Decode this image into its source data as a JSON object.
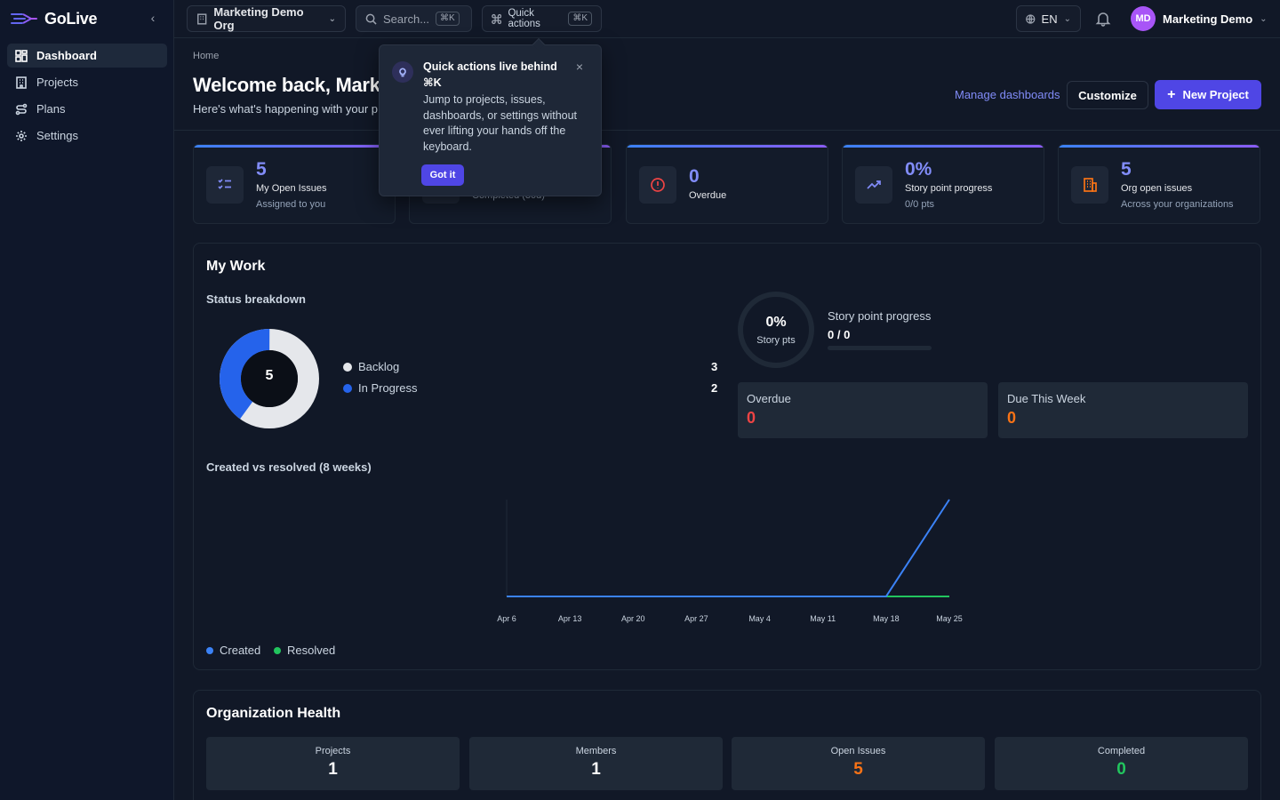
{
  "app": {
    "name": "GoLive"
  },
  "sidebar": {
    "items": [
      {
        "label": "Dashboard",
        "icon": "grid-icon",
        "active": true
      },
      {
        "label": "Projects",
        "icon": "building-icon"
      },
      {
        "label": "Plans",
        "icon": "route-icon"
      },
      {
        "label": "Settings",
        "icon": "gear-icon"
      }
    ]
  },
  "topbar": {
    "org": "Marketing Demo Org",
    "search_label": "Search...",
    "search_kbd": "⌘K",
    "quick_actions": "Quick actions",
    "quick_kbd": "⌘K",
    "lang": "EN",
    "user_initials": "MD",
    "user_name": "Marketing Demo"
  },
  "header": {
    "breadcrumb": "Home",
    "welcome": "Welcome back, Mark",
    "subtitle": "Here's what's happening with your p",
    "manage_link": "Manage dashboards",
    "customize": "Customize",
    "new_project": "New Project"
  },
  "popover": {
    "title": "Quick actions live behind ⌘K",
    "body": "Jump to projects, issues, dashboards, or settings without ever lifting your hands off the keyboard.",
    "button": "Got it"
  },
  "stats": [
    {
      "value": "5",
      "label": "My Open Issues",
      "sub": "Assigned to you"
    },
    {
      "value": "",
      "label": "Completed (30d)",
      "sub": ""
    },
    {
      "value": "0",
      "label": "Overdue",
      "sub": ""
    },
    {
      "value": "0%",
      "label": "Story point progress",
      "sub": "0/0 pts"
    },
    {
      "value": "5",
      "label": "Org open issues",
      "sub": "Across your organizations"
    }
  ],
  "my_work": {
    "title": "My Work",
    "status_breakdown": "Status breakdown",
    "donut_total": "5",
    "status": [
      {
        "label": "Backlog",
        "count": "3",
        "color": "#e5e7eb"
      },
      {
        "label": "In Progress",
        "count": "2",
        "color": "#2563eb"
      }
    ],
    "sp_percent": "0%",
    "sp_caption": "Story pts",
    "sp_title": "Story point progress",
    "sp_value": "0 / 0",
    "overdue_label": "Overdue",
    "overdue_value": "0",
    "due_label": "Due This Week",
    "due_value": "0",
    "chart_title": "Created vs resolved (8 weeks)"
  },
  "chart_data": {
    "type": "line",
    "title": "Created vs resolved (8 weeks)",
    "x": [
      "Apr 6",
      "Apr 13",
      "Apr 20",
      "Apr 27",
      "May 4",
      "May 11",
      "May 18",
      "May 25"
    ],
    "series": [
      {
        "name": "Created",
        "values": [
          0,
          0,
          0,
          0,
          0,
          0,
          0,
          5
        ],
        "color": "#3b82f6"
      },
      {
        "name": "Resolved",
        "values": [
          0,
          0,
          0,
          0,
          0,
          0,
          0,
          0
        ],
        "color": "#22c55e"
      }
    ],
    "ylim": [
      0,
      5
    ],
    "grid": false,
    "legend": "bottom-left"
  },
  "org_health": {
    "title": "Organization Health",
    "items": [
      {
        "label": "Projects",
        "value": "1",
        "color": "#ffffff"
      },
      {
        "label": "Members",
        "value": "1",
        "color": "#ffffff"
      },
      {
        "label": "Open Issues",
        "value": "5",
        "color": "#f97316"
      },
      {
        "label": "Completed",
        "value": "0",
        "color": "#22c55e"
      }
    ]
  },
  "colors": {
    "accent": "#4f46e5",
    "danger": "#ef4444",
    "warning": "#f97316",
    "success": "#22c55e"
  }
}
